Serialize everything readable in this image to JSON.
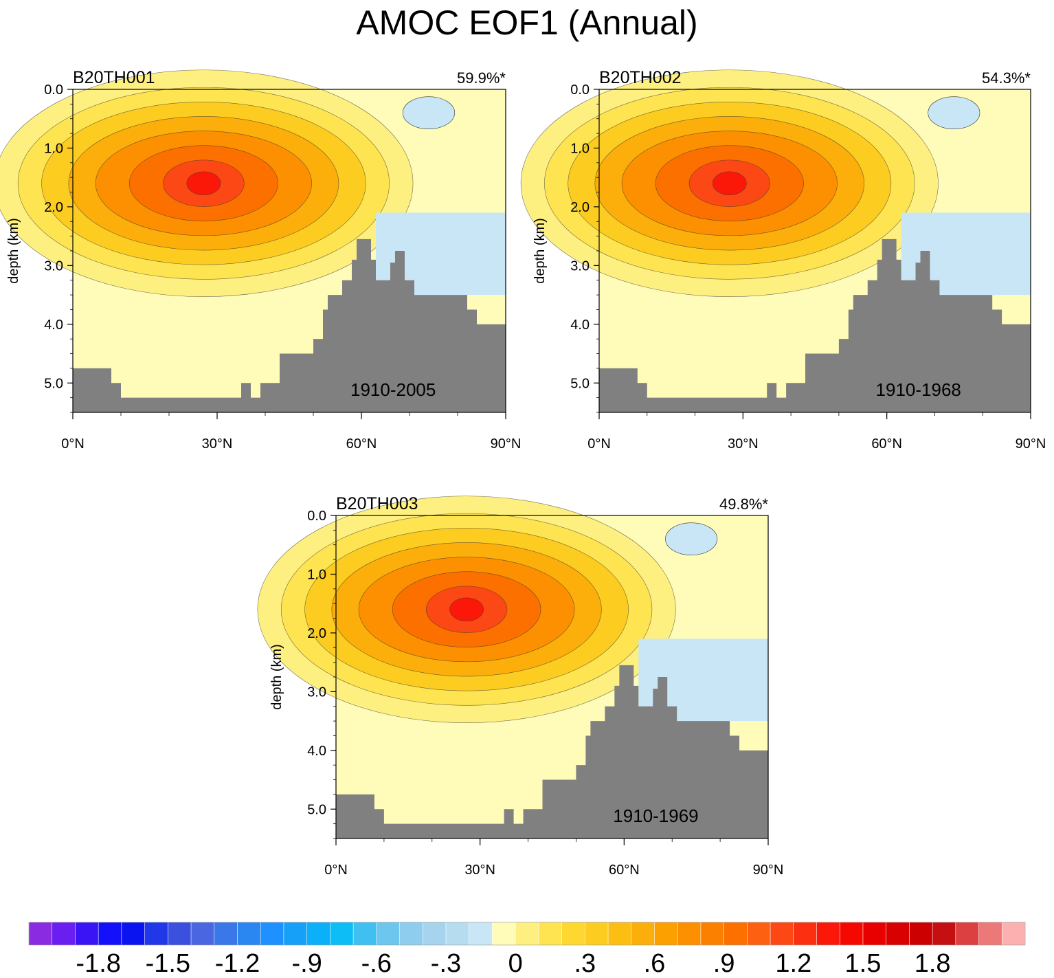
{
  "title": "AMOC EOF1 (Annual)",
  "chart_data": {
    "type": "contour",
    "panels": [
      {
        "name": "B20TH001",
        "variance": "59.9%*",
        "period": "1910-2005"
      },
      {
        "name": "B20TH002",
        "variance": "54.3%*",
        "period": "1910-1968"
      },
      {
        "name": "B20TH003",
        "variance": "49.8%*",
        "period": "1910-1969"
      }
    ],
    "ylabel": "depth (km)",
    "yticks": [
      "0.0",
      "1.0",
      "2.0",
      "3.0",
      "4.0",
      "5.0"
    ],
    "xticks": [
      "0°N",
      "30°N",
      "60°N",
      "90°N"
    ],
    "xlim": [
      0,
      90
    ],
    "ylim": [
      5.5,
      0
    ],
    "colorbar": {
      "tick_labels": [
        "-1.8",
        "-1.5",
        "-1.2",
        "-.9",
        "-.6",
        "-.3",
        "0",
        ".3",
        ".6",
        ".9",
        "1.2",
        "1.5",
        "1.8"
      ],
      "colors": [
        "#8a2be2",
        "#6a1ef0",
        "#3a14f5",
        "#1410fa",
        "#0a14f0",
        "#2038e8",
        "#3c50e0",
        "#4a66e0",
        "#3a78ea",
        "#2a86f0",
        "#1e90ff",
        "#16a0f8",
        "#0cb0f8",
        "#0cbef5",
        "#40c0f0",
        "#6cc6ee",
        "#8ecdee",
        "#a6d4ee",
        "#b6dcf0",
        "#c8e6f6",
        "#fefcb8",
        "#fef080",
        "#fee450",
        "#fed830",
        "#fdcc20",
        "#fdbe14",
        "#fcae0a",
        "#fca000",
        "#fc9000",
        "#fc8000",
        "#fc7000",
        "#fc6010",
        "#fc4814",
        "#fc3010",
        "#fc1808",
        "#f40800",
        "#e80000",
        "#d80000",
        "#cc0000",
        "#c41010",
        "#dc4040",
        "#ec7878",
        "#fcb0b0"
      ]
    }
  }
}
